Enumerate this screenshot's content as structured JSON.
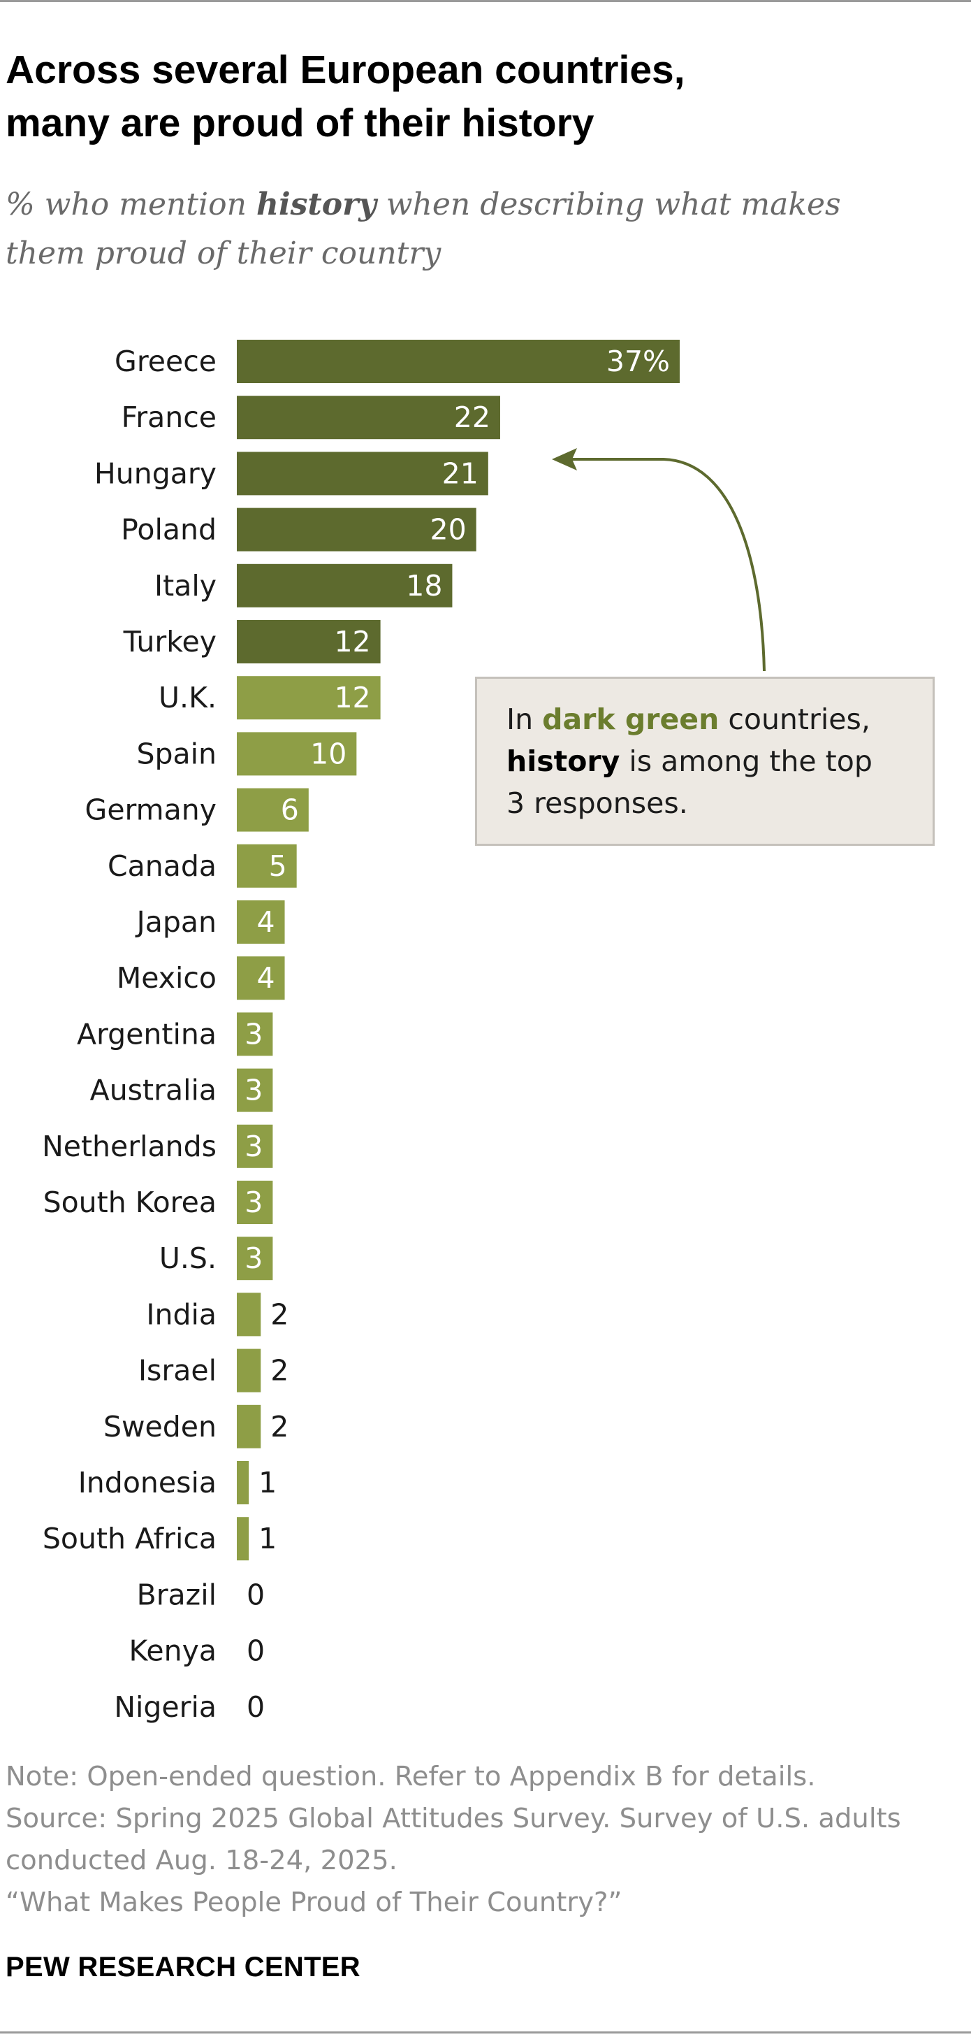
{
  "title": {
    "line1": "Across several European countries,",
    "line2": "many are proud of their history"
  },
  "subtitle": {
    "line1_pre": "% who mention ",
    "line1_bold": "history",
    "line1_post": " when describing what makes",
    "line2": "them proud of their country"
  },
  "callout": {
    "text_1": "In ",
    "highlight": "dark green",
    "text_2": " countries,",
    "bold": "history",
    "text_3": " is among the top",
    "line3": "3 responses."
  },
  "notes": {
    "note": "Note: Open-ended question. Refer to Appendix B for details.",
    "source_1": "Source: Spring 2025 Global Attitudes Survey. Survey of U.S. adults",
    "source_2": "conducted Aug. 18-24, 2025.",
    "report": "“What Makes People Proud of Their Country?”"
  },
  "brand": "PEW RESEARCH CENTER",
  "colors": {
    "dark_green": "#5d6a2e",
    "light_green": "#8e9e46",
    "arrow": "#5d6a2e",
    "callout_bg": "#ede9e3"
  },
  "chart_data": {
    "type": "bar",
    "orientation": "horizontal",
    "unit": "%",
    "categories": [
      "Greece",
      "France",
      "Hungary",
      "Poland",
      "Italy",
      "Turkey",
      "U.K.",
      "Spain",
      "Germany",
      "Canada",
      "Japan",
      "Mexico",
      "Argentina",
      "Australia",
      "Netherlands",
      "South Korea",
      "U.S.",
      "India",
      "Israel",
      "Sweden",
      "Indonesia",
      "South Africa",
      "Brazil",
      "Kenya",
      "Nigeria"
    ],
    "values": [
      37,
      22,
      21,
      20,
      18,
      12,
      12,
      10,
      6,
      5,
      4,
      4,
      3,
      3,
      3,
      3,
      3,
      2,
      2,
      2,
      1,
      1,
      0,
      0,
      0
    ],
    "labels": [
      "37%",
      "22",
      "21",
      "20",
      "18",
      "12",
      "12",
      "10",
      "6",
      "5",
      "4",
      "4",
      "3",
      "3",
      "3",
      "3",
      "3",
      "2",
      "2",
      "2",
      "1",
      "1",
      "0",
      "0",
      "0"
    ],
    "top3_history": [
      true,
      true,
      true,
      true,
      true,
      true,
      false,
      false,
      false,
      false,
      false,
      false,
      false,
      false,
      false,
      false,
      false,
      false,
      false,
      false,
      false,
      false,
      false,
      false,
      false
    ],
    "xlim": [
      0,
      37
    ],
    "grid": false,
    "legend": "none"
  }
}
